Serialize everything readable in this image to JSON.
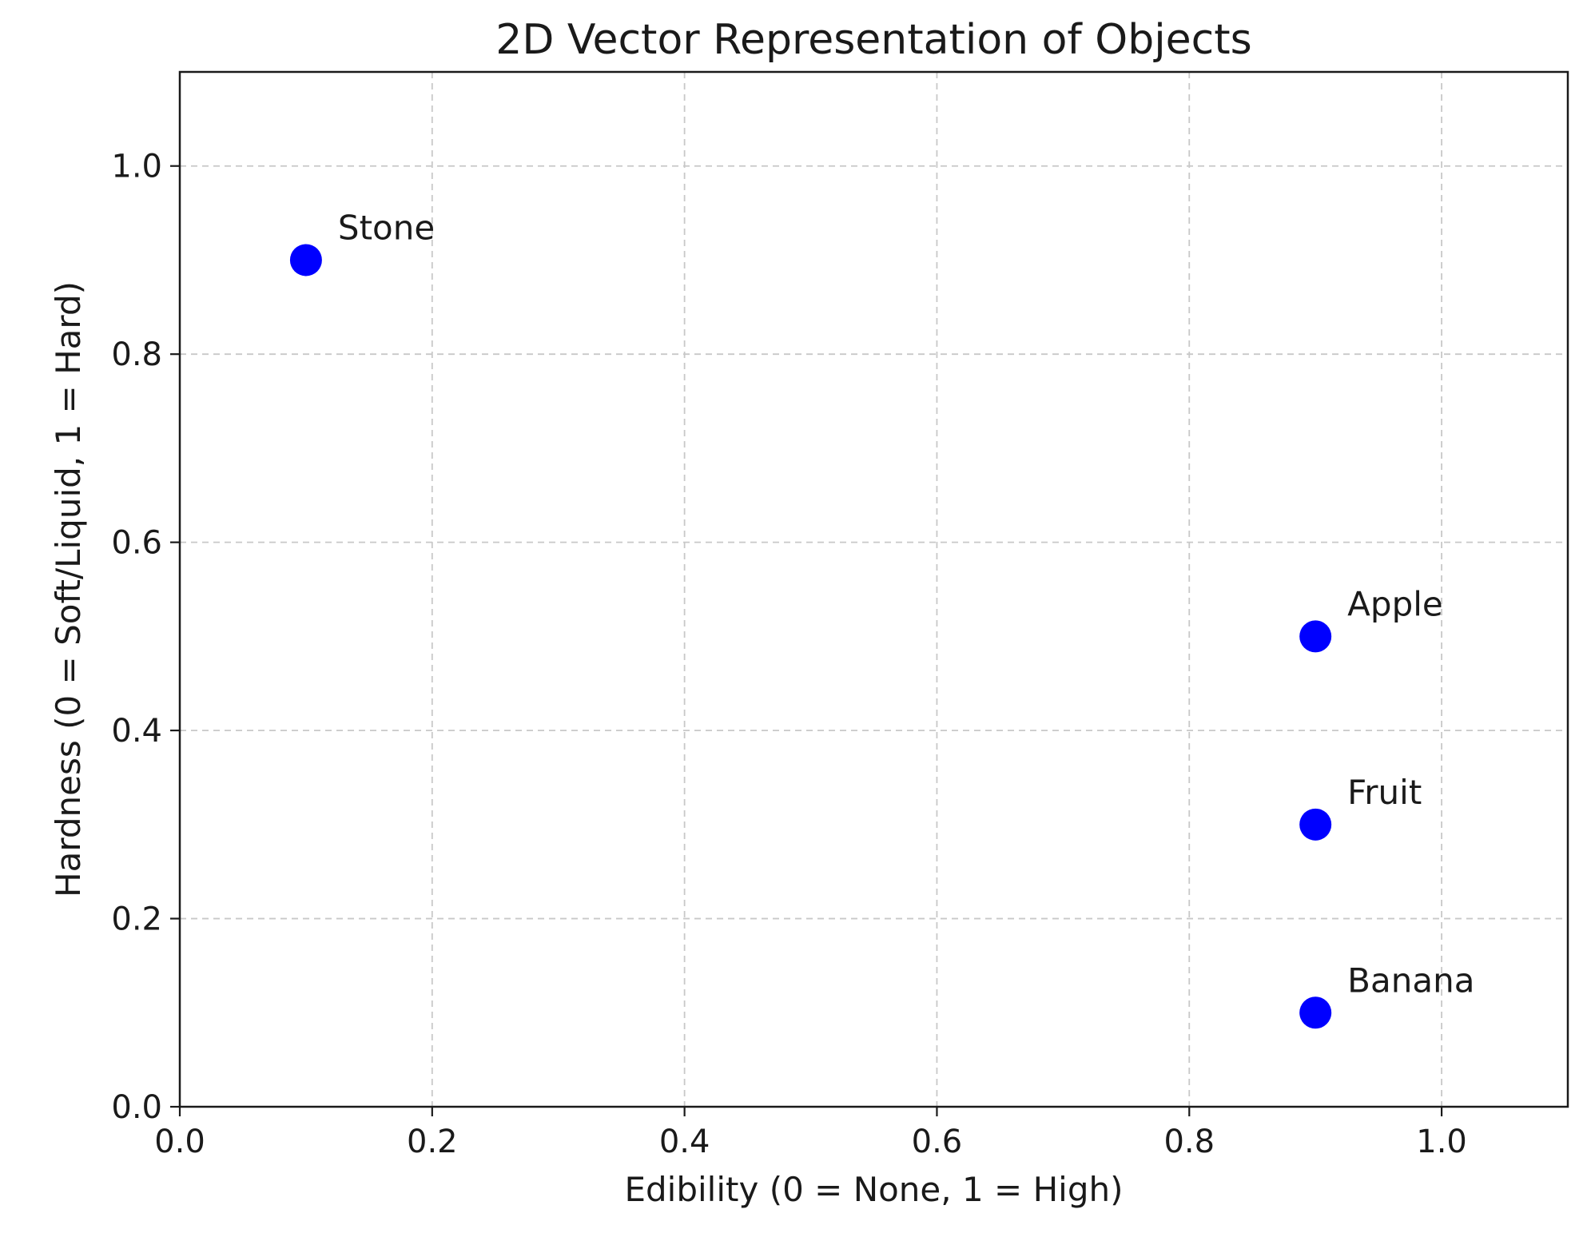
{
  "chart_data": {
    "type": "scatter",
    "title": "2D Vector Representation of Objects",
    "xlabel": "Edibility (0 = None, 1 = High)",
    "ylabel": "Hardness (0 = Soft/Liquid, 1 = Hard)",
    "xlim": [
      0.0,
      1.1
    ],
    "ylim": [
      0.0,
      1.1
    ],
    "xticks": [
      "0.0",
      "0.2",
      "0.4",
      "0.6",
      "0.8",
      "1.0"
    ],
    "yticks": [
      "0.0",
      "0.2",
      "0.4",
      "0.6",
      "0.8",
      "1.0"
    ],
    "grid": true,
    "marker_color": "#0000ff",
    "points": [
      {
        "label": "Stone",
        "x": 0.1,
        "y": 0.9
      },
      {
        "label": "Apple",
        "x": 0.9,
        "y": 0.5
      },
      {
        "label": "Fruit",
        "x": 0.9,
        "y": 0.3
      },
      {
        "label": "Banana",
        "x": 0.9,
        "y": 0.1
      }
    ]
  }
}
